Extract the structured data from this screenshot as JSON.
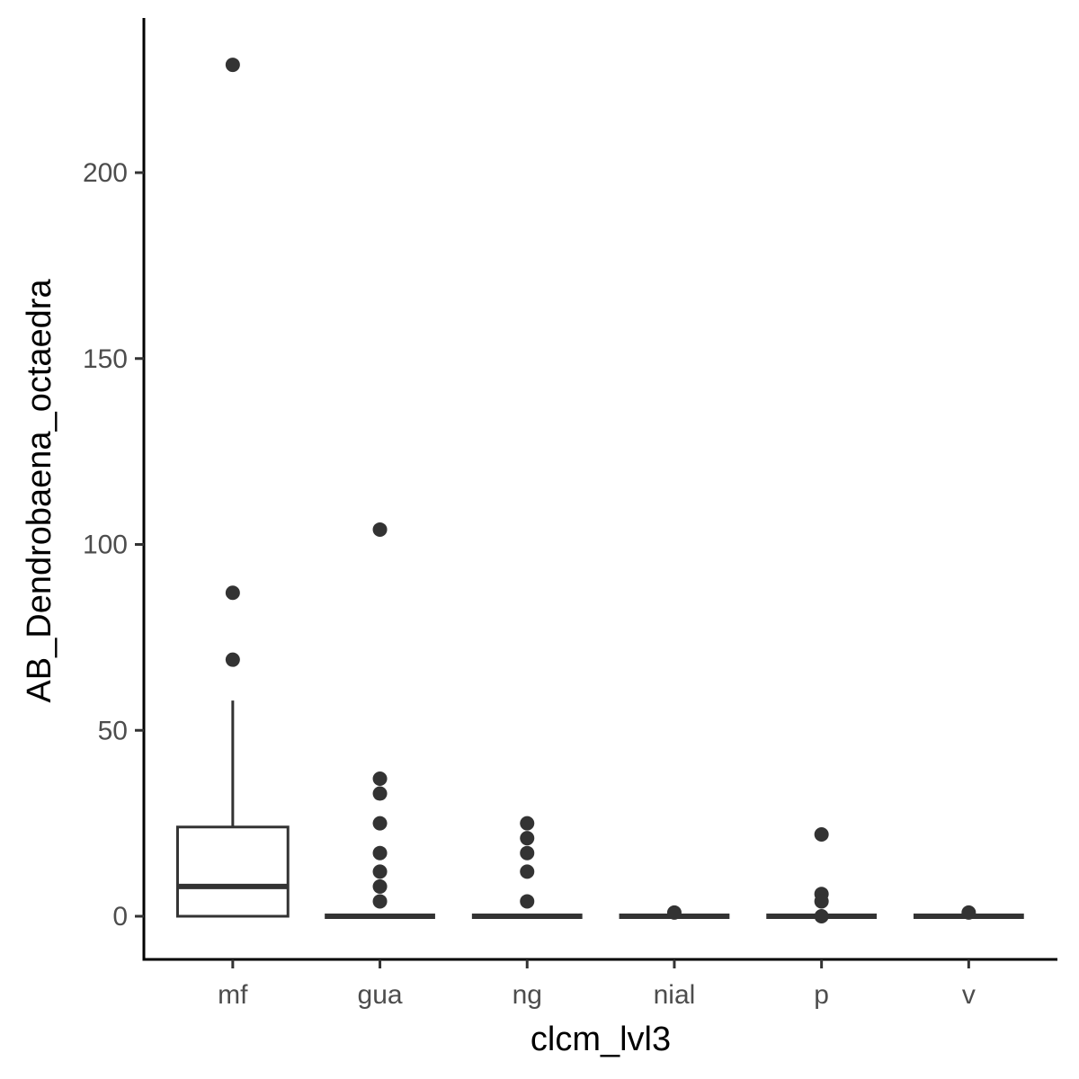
{
  "chart_data": {
    "type": "boxplot",
    "xlabel": "clcm_lvl3",
    "ylabel": "AB_Dendrobaena_octaedra",
    "ylim": [
      -12,
      232
    ],
    "yticks": [
      0,
      50,
      100,
      150,
      200
    ],
    "categories": [
      "mf",
      "gua",
      "ng",
      "nial",
      "p",
      "v"
    ],
    "boxes": [
      {
        "category": "mf",
        "q1": 0,
        "median": 8,
        "q3": 24,
        "whisker_low": 0,
        "whisker_high": 58,
        "outliers": [
          229,
          87,
          69
        ]
      },
      {
        "category": "gua",
        "q1": 0,
        "median": 0,
        "q3": 0,
        "whisker_low": 0,
        "whisker_high": 0,
        "outliers": [
          104,
          37,
          33,
          25,
          17,
          12,
          8,
          4
        ]
      },
      {
        "category": "ng",
        "q1": 0,
        "median": 0,
        "q3": 0,
        "whisker_low": 0,
        "whisker_high": 0,
        "outliers": [
          25,
          21,
          17,
          12,
          4
        ]
      },
      {
        "category": "nial",
        "q1": 0,
        "median": 0,
        "q3": 0,
        "whisker_low": 0,
        "whisker_high": 0,
        "outliers": [
          1
        ]
      },
      {
        "category": "p",
        "q1": 0,
        "median": 0,
        "q3": 0,
        "whisker_low": 0,
        "whisker_high": 0,
        "outliers": [
          22,
          6,
          4,
          0
        ]
      },
      {
        "category": "v",
        "q1": 0,
        "median": 0,
        "q3": 0,
        "whisker_low": 0,
        "whisker_high": 0,
        "outliers": [
          1
        ]
      }
    ],
    "grid": false,
    "legend": "none"
  }
}
